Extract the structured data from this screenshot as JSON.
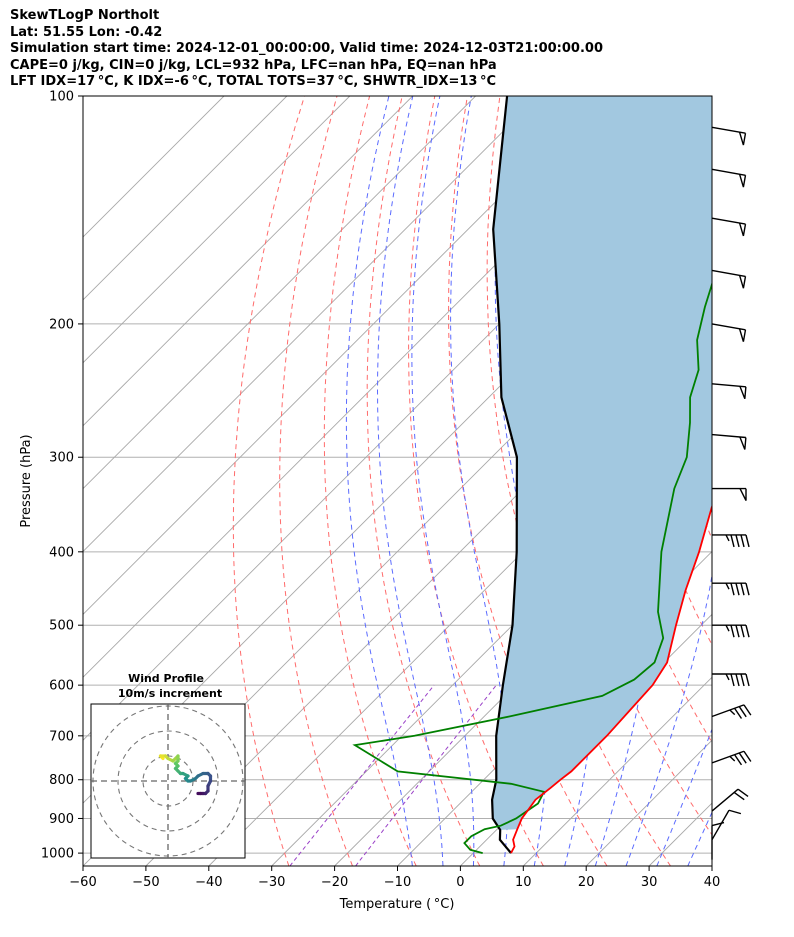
{
  "header": {
    "line1": "SkewTLogP Northolt",
    "line2": "Lat: 51.55   Lon: -0.42",
    "line3": "Simulation start time: 2024-12-01_00:00:00, Valid time: 2024-12-03T21:00:00.00",
    "line4": "CAPE=0 j/kg, CIN=0 j/kg, LCL=932 hPa, LFC=nan hPa, EQ=nan hPa",
    "line5": "LFT IDX=17 °C, K IDX=-6 °C, TOTAL TOTS=37 °C, SHWTR_IDX=13 °C"
  },
  "colors": {
    "temperature": "#ff0000",
    "dewpoint": "#008000",
    "parcel": "#000000",
    "cape_fill": "#a2c8e0",
    "dry_adiabats": "#ff6b6b",
    "moist_adiabats": "#5b6bff",
    "isotherms": "#a8a8a8",
    "mixing_ratio": "#9a40c8"
  },
  "chart_data": {
    "type": "skewt-logp",
    "xlabel": "Temperature ( °C)",
    "ylabel": "Pressure (hPa)",
    "xlim": [
      -60,
      40
    ],
    "ylim": [
      1040,
      100
    ],
    "x_ticks": [
      "−60",
      "−50",
      "−40",
      "−30",
      "−20",
      "−10",
      "0",
      "10",
      "20",
      "30",
      "40"
    ],
    "y_ticks": [
      "100",
      "200",
      "300",
      "400",
      "500",
      "600",
      "700",
      "800",
      "900",
      "1000"
    ],
    "grid": true,
    "temperature_profile": [
      [
        1000,
        6
      ],
      [
        980,
        5.5
      ],
      [
        960,
        4.2
      ],
      [
        930,
        3.2
      ],
      [
        900,
        2.2
      ],
      [
        880,
        1.9
      ],
      [
        850,
        1.4
      ],
      [
        820,
        1.9
      ],
      [
        800,
        2.2
      ],
      [
        780,
        2.6
      ],
      [
        700,
        2.6
      ],
      [
        600,
        1.8
      ],
      [
        560,
        0.5
      ],
      [
        500,
        -4
      ],
      [
        450,
        -8
      ],
      [
        400,
        -12
      ],
      [
        350,
        -17
      ],
      [
        300,
        -22
      ],
      [
        270,
        -26
      ],
      [
        250,
        -31
      ],
      [
        230,
        -31
      ],
      [
        200,
        -35
      ],
      [
        180,
        -38
      ],
      [
        160,
        -41
      ],
      [
        140,
        -47
      ],
      [
        120,
        -55
      ],
      [
        100,
        -61
      ]
    ],
    "dewpoint_profile": [
      [
        1000,
        1.5
      ],
      [
        990,
        -1
      ],
      [
        970,
        -3
      ],
      [
        950,
        -3
      ],
      [
        930,
        -2
      ],
      [
        920,
        0
      ],
      [
        900,
        1.3
      ],
      [
        860,
        2.4
      ],
      [
        830,
        1.5
      ],
      [
        810,
        -5
      ],
      [
        780,
        -25
      ],
      [
        720,
        -36
      ],
      [
        700,
        -28
      ],
      [
        660,
        -16
      ],
      [
        620,
        -4.5
      ],
      [
        590,
        -2
      ],
      [
        560,
        -1.5
      ],
      [
        520,
        -4
      ],
      [
        480,
        -9
      ],
      [
        400,
        -18
      ],
      [
        330,
        -26
      ],
      [
        300,
        -29
      ],
      [
        270,
        -34
      ],
      [
        250,
        -38
      ],
      [
        230,
        -41
      ],
      [
        210,
        -46
      ],
      [
        190,
        -50
      ],
      [
        170,
        -54
      ],
      [
        150,
        -55
      ],
      [
        130,
        -58
      ],
      [
        110,
        -63
      ],
      [
        100,
        -66
      ]
    ],
    "parcel_profile": [
      [
        1000,
        6
      ],
      [
        960,
        2.1
      ],
      [
        932,
        0.6
      ],
      [
        900,
        -2.4
      ],
      [
        850,
        -5.5
      ],
      [
        800,
        -8
      ],
      [
        700,
        -15
      ],
      [
        600,
        -22
      ],
      [
        500,
        -30
      ],
      [
        400,
        -41
      ],
      [
        300,
        -56
      ],
      [
        250,
        -68
      ],
      [
        200,
        -80
      ],
      [
        150,
        -96
      ],
      [
        100,
        -115
      ]
    ],
    "cape_region": "between parcel and temperature profiles from 932 to 100 hPa",
    "wind_barbs": [
      {
        "pressure": 110,
        "speed_kt": 50,
        "direction_deg": 280
      },
      {
        "pressure": 125,
        "speed_kt": 50,
        "direction_deg": 280
      },
      {
        "pressure": 145,
        "speed_kt": 50,
        "direction_deg": 280
      },
      {
        "pressure": 170,
        "speed_kt": 50,
        "direction_deg": 280
      },
      {
        "pressure": 200,
        "speed_kt": 50,
        "direction_deg": 280
      },
      {
        "pressure": 240,
        "speed_kt": 50,
        "direction_deg": 275
      },
      {
        "pressure": 280,
        "speed_kt": 50,
        "direction_deg": 275
      },
      {
        "pressure": 330,
        "speed_kt": 50,
        "direction_deg": 270
      },
      {
        "pressure": 380,
        "speed_kt": 45,
        "direction_deg": 270
      },
      {
        "pressure": 440,
        "speed_kt": 45,
        "direction_deg": 270
      },
      {
        "pressure": 500,
        "speed_kt": 45,
        "direction_deg": 270
      },
      {
        "pressure": 580,
        "speed_kt": 45,
        "direction_deg": 270
      },
      {
        "pressure": 660,
        "speed_kt": 35,
        "direction_deg": 250
      },
      {
        "pressure": 760,
        "speed_kt": 35,
        "direction_deg": 250
      },
      {
        "pressure": 880,
        "speed_kt": 20,
        "direction_deg": 230
      },
      {
        "pressure": 960,
        "speed_kt": 10,
        "direction_deg": 210
      },
      {
        "pressure": 1020,
        "speed_kt": 10,
        "direction_deg": 180
      }
    ],
    "inset": {
      "title": "Wind Profile",
      "subtitle": "10m/s increment",
      "rings": [
        10,
        20,
        30
      ],
      "hodograph": [
        [
          -2,
          9
        ],
        [
          -3,
          10
        ],
        [
          -1,
          10
        ],
        [
          0,
          9
        ],
        [
          2,
          8
        ],
        [
          4,
          10
        ],
        [
          4,
          8
        ],
        [
          3,
          7
        ],
        [
          4,
          6
        ],
        [
          3,
          5
        ],
        [
          4,
          4
        ],
        [
          5,
          3
        ],
        [
          6,
          3
        ],
        [
          8,
          2
        ],
        [
          7,
          1
        ],
        [
          8,
          0
        ],
        [
          9,
          0
        ],
        [
          11,
          1
        ],
        [
          12,
          2
        ],
        [
          14,
          3
        ],
        [
          16,
          3
        ],
        [
          17,
          2
        ],
        [
          17,
          0
        ],
        [
          16,
          -2
        ],
        [
          16,
          -4
        ],
        [
          15,
          -5
        ],
        [
          14,
          -5
        ],
        [
          13,
          -5
        ],
        [
          12,
          -5
        ]
      ]
    }
  }
}
